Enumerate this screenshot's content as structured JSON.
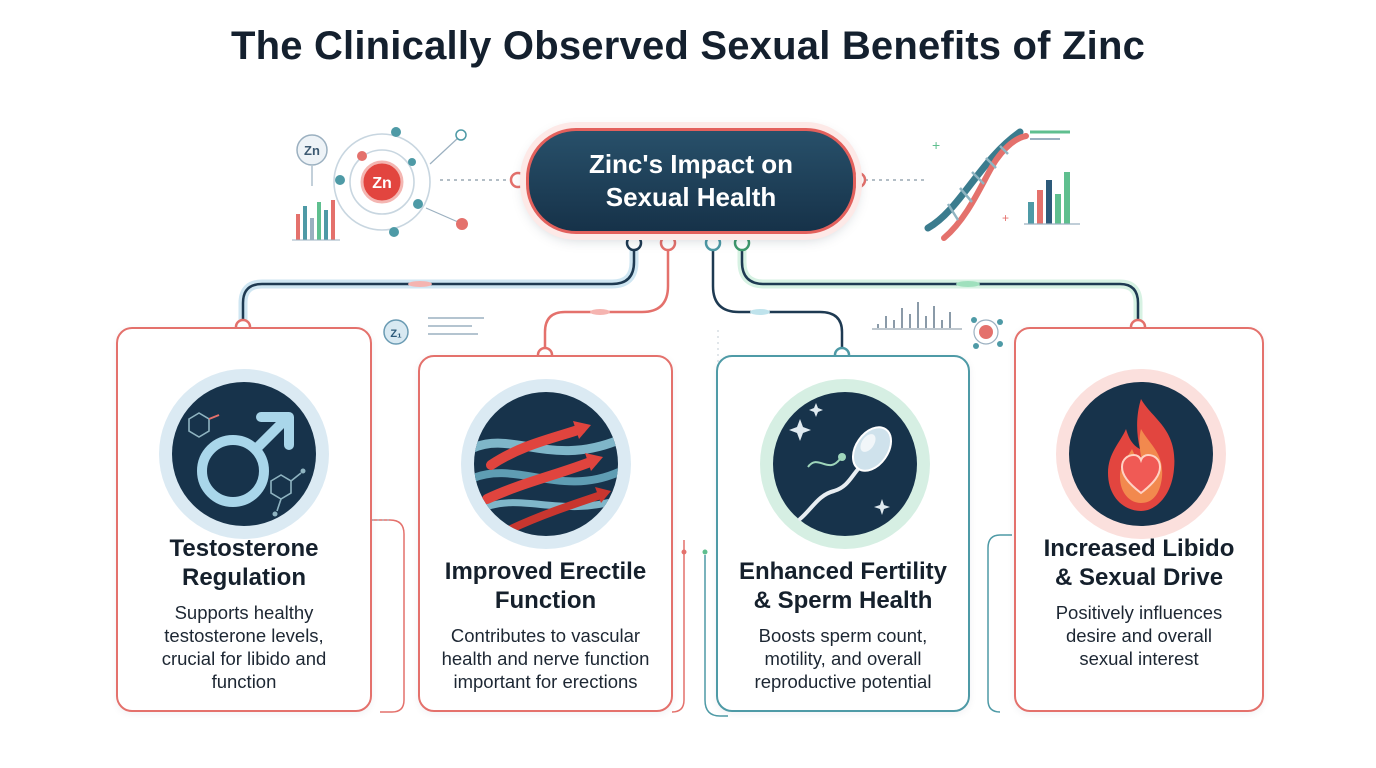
{
  "title": "The Clinically Observed Sexual Benefits of Zinc",
  "hub": {
    "lines": [
      "Zinc's Impact on",
      "Sexual Health"
    ]
  },
  "decor": {
    "zn_small": "Zn",
    "zn_atom": "Zn",
    "zn_tiny": "Z₁"
  },
  "benefits": [
    {
      "title": [
        "Testosterone",
        "Regulation"
      ],
      "description": [
        "Supports healthy",
        "testosterone levels,",
        "crucial for libido and",
        "function"
      ],
      "icon": "male-symbol-icon"
    },
    {
      "title": [
        "Improved Erectile",
        "Function"
      ],
      "description": [
        "Contributes to vascular",
        "health and nerve function",
        "important for erections"
      ],
      "icon": "blood-flow-arrows-icon"
    },
    {
      "title": [
        "Enhanced Fertility",
        "& Sperm Health"
      ],
      "description": [
        "Boosts sperm count,",
        "motility, and overall",
        "reproductive potential"
      ],
      "icon": "sperm-cell-icon"
    },
    {
      "title": [
        "Increased Libido",
        "& Sexual Drive"
      ],
      "description": [
        "Positively influences",
        "desire and overall",
        "sexual interest"
      ],
      "icon": "flame-heart-icon"
    }
  ],
  "colors": {
    "navy": "#163249",
    "coral": "#e4716c",
    "teal": "#4e9aa6",
    "green": "#5fbf8f"
  }
}
